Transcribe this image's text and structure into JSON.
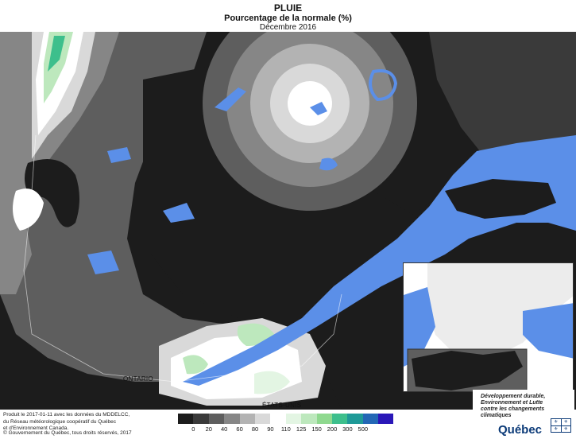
{
  "header": {
    "title": "PLUIE",
    "subtitle": "Pourcentage de la normale (%)",
    "date": "Décembre 2016"
  },
  "map_labels": {
    "ontario": "ONTARIO",
    "etats_unis": "ÉTATS-UNIS"
  },
  "legend": {
    "colors": [
      "#1c1c1c",
      "#3a3a3a",
      "#5e5e5e",
      "#868686",
      "#b3b3b3",
      "#d9d9d9",
      "#ffffff",
      "#e3f5e3",
      "#bde8bd",
      "#8fd98f",
      "#3dbf8c",
      "#1f9a98",
      "#2367b5",
      "#2a17b8"
    ],
    "ticks": [
      "0",
      "20",
      "40",
      "60",
      "80",
      "90",
      "110",
      "125",
      "150",
      "200",
      "300",
      "500"
    ]
  },
  "credits": {
    "line1": "Produit le 2017-01-11 avec les données du MDDELCC,",
    "line2": "du Réseau météorologique coopératif du Québec",
    "line3": "et d'Environnement Canada.",
    "copyright": "© Gouvernement du Québec, tous droits réservés, 2017"
  },
  "logo": {
    "line1": "Développement durable,",
    "line2": "Environnement et Lutte",
    "line3": "contre les changements",
    "line4": "climatiques",
    "name": "Québec"
  },
  "colors": {
    "water": "#5b8fe8",
    "outside": "#1a1a1a"
  }
}
